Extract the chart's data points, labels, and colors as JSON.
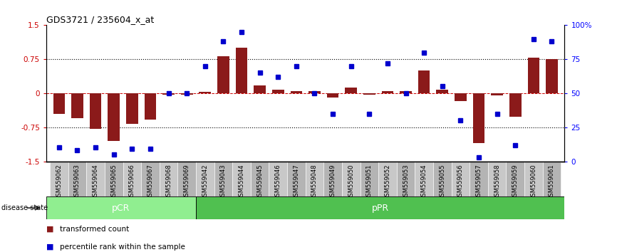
{
  "title": "GDS3721 / 235604_x_at",
  "samples": [
    "GSM559062",
    "GSM559063",
    "GSM559064",
    "GSM559065",
    "GSM559066",
    "GSM559067",
    "GSM559068",
    "GSM559069",
    "GSM559042",
    "GSM559043",
    "GSM559044",
    "GSM559045",
    "GSM559046",
    "GSM559047",
    "GSM559048",
    "GSM559049",
    "GSM559050",
    "GSM559051",
    "GSM559052",
    "GSM559053",
    "GSM559054",
    "GSM559055",
    "GSM559056",
    "GSM559057",
    "GSM559058",
    "GSM559059",
    "GSM559060",
    "GSM559061"
  ],
  "transformed_count": [
    -0.45,
    -0.55,
    -0.78,
    -1.05,
    -0.68,
    -0.58,
    -0.03,
    -0.03,
    0.03,
    0.82,
    1.0,
    0.18,
    0.08,
    0.05,
    0.05,
    -0.1,
    0.12,
    -0.03,
    0.05,
    0.05,
    0.5,
    0.08,
    -0.18,
    -1.1,
    -0.05,
    -0.52,
    0.78,
    0.75
  ],
  "percentile_rank": [
    10,
    8,
    10,
    5,
    9,
    9,
    50,
    50,
    70,
    88,
    95,
    65,
    62,
    70,
    50,
    35,
    70,
    35,
    72,
    50,
    80,
    55,
    30,
    3,
    35,
    12,
    90,
    88
  ],
  "pcr_count": 8,
  "bar_color": "#8B1A1A",
  "dot_color": "#0000CD",
  "pcr_color": "#90EE90",
  "ppr_color": "#50C050",
  "ylim_left": [
    -1.5,
    1.5
  ],
  "ylim_right": [
    0,
    100
  ],
  "yticks_left": [
    -1.5,
    -0.75,
    0,
    0.75,
    1.5
  ],
  "yticklabels_left": [
    "-1.5",
    "-0.75",
    "0",
    "0.75",
    "1.5"
  ],
  "yticks_right": [
    0,
    25,
    50,
    75,
    100
  ],
  "yticklabels_right": [
    "0",
    "25",
    "50",
    "75",
    "100%"
  ],
  "left_tick_color": "#CC0000",
  "right_tick_color": "#0000FF",
  "dotted_line_y": [
    0.75,
    -0.75
  ],
  "zero_line_color": "#CC0000",
  "background_color": "#ffffff"
}
